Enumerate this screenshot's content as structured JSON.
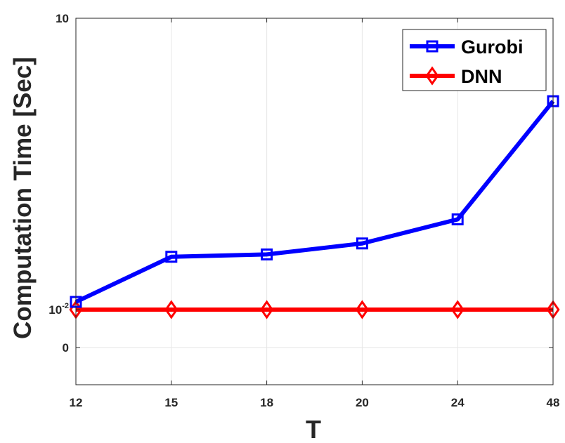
{
  "chart_data": {
    "type": "line",
    "xlabel": "T",
    "ylabel": "Computation Time [Sec]",
    "categories": [
      "12",
      "15",
      "18",
      "20",
      "24",
      "48"
    ],
    "y_ticks": [
      {
        "value": 0,
        "base": "0",
        "exp": ""
      },
      {
        "value": 0.01,
        "base": "10",
        "exp": "-2"
      },
      {
        "value": 10,
        "base": "10",
        "exp": ""
      }
    ],
    "ylim": [
      -0.001,
      10
    ],
    "grid": true,
    "legend_position": "top-right",
    "series": [
      {
        "name": "Gurobi",
        "color": "#0000ff",
        "marker": "square",
        "values": [
          0.012,
          0.035,
          0.037,
          0.048,
          0.085,
          1.4
        ]
      },
      {
        "name": "DNN",
        "color": "#ff0000",
        "marker": "diamond",
        "values": [
          0.01,
          0.01,
          0.01,
          0.01,
          0.01,
          0.01
        ]
      }
    ]
  }
}
